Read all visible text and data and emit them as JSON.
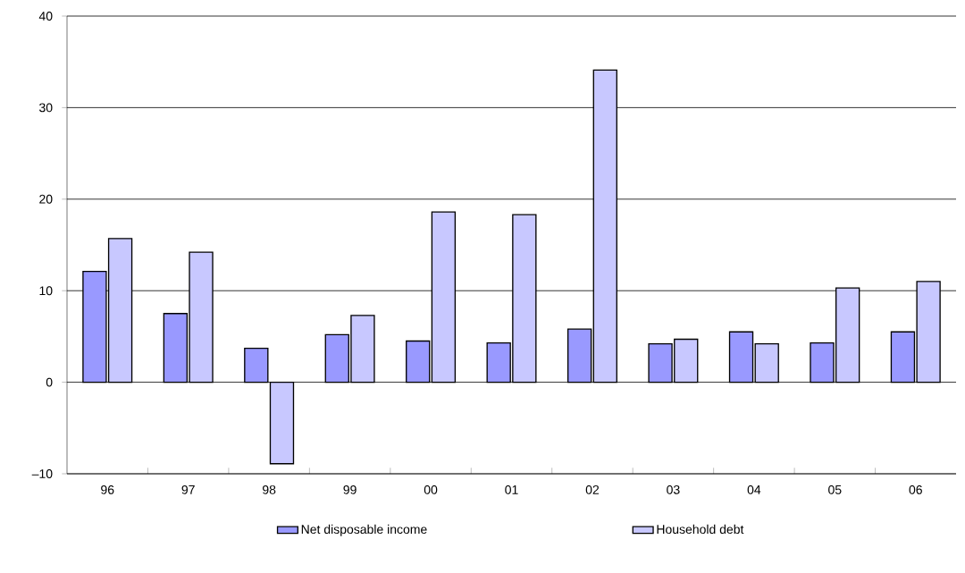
{
  "chart_data": {
    "type": "bar",
    "categories": [
      "96",
      "97",
      "98",
      "99",
      "00",
      "01",
      "02",
      "03",
      "04",
      "05",
      "06"
    ],
    "series": [
      {
        "name": "Net disposable income",
        "color": "#9999ff",
        "values": [
          12.1,
          7.5,
          3.7,
          5.2,
          4.5,
          4.3,
          5.8,
          4.2,
          5.5,
          4.3,
          5.5
        ]
      },
      {
        "name": "Household debt",
        "color": "#c8c8ff",
        "values": [
          15.7,
          14.2,
          -8.9,
          7.3,
          18.6,
          18.3,
          34.1,
          4.7,
          4.2,
          10.3,
          11.0
        ]
      }
    ],
    "ylim": [
      -10,
      40
    ],
    "yticks": [
      {
        "value": -10,
        "label": "–10"
      },
      0,
      10,
      20,
      30,
      40
    ],
    "grid": "y",
    "legend": "bottom"
  }
}
